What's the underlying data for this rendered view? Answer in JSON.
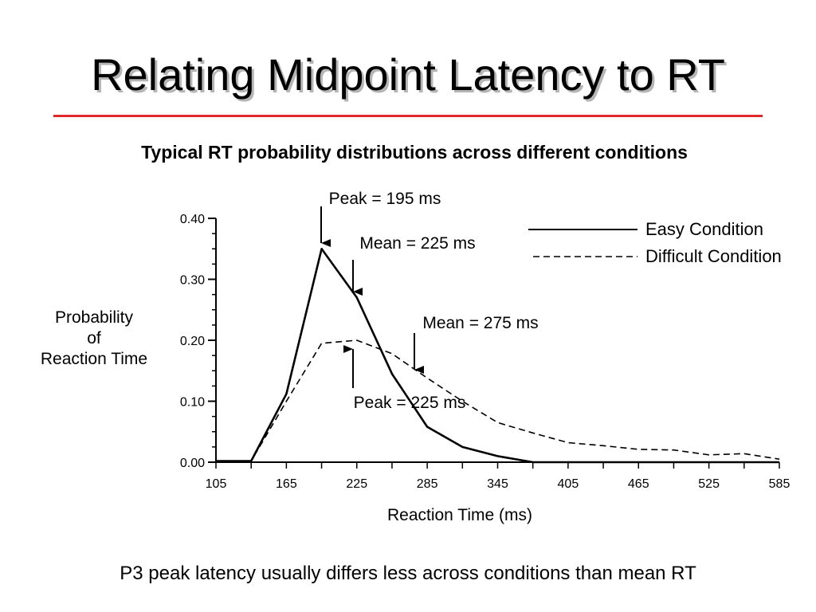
{
  "slide": {
    "title": "Relating Midpoint Latency to RT",
    "rule_color": "#e3282b",
    "footer": "P3 peak latency usually differs less across conditions than mean RT"
  },
  "chart_data": {
    "type": "line",
    "title": "Typical RT probability distributions across different conditions",
    "xlabel": "Reaction Time (ms)",
    "ylabel_lines": [
      "Probability",
      "of",
      "Reaction Time"
    ],
    "xlim": [
      105,
      585
    ],
    "ylim": [
      0,
      0.4
    ],
    "x_ticks": [
      "105",
      "165",
      "225",
      "285",
      "345",
      "405",
      "465",
      "525",
      "585"
    ],
    "y_ticks": [
      "0.00",
      "0.10",
      "0.20",
      "0.30",
      "0.40"
    ],
    "legend_position": "top-right",
    "series": [
      {
        "name": "Easy Condition",
        "style": "solid",
        "x": [
          105,
          135,
          165,
          195,
          225,
          255,
          285,
          315,
          345,
          375,
          405,
          435,
          465,
          495,
          525,
          555,
          585
        ],
        "y": [
          0.002,
          0.002,
          0.112,
          0.35,
          0.27,
          0.145,
          0.058,
          0.025,
          0.01,
          0.0,
          0.0,
          0.0,
          0.0,
          0.0,
          0.0,
          0.0,
          0.0
        ]
      },
      {
        "name": "Difficult Condition",
        "style": "dashed",
        "x": [
          105,
          135,
          165,
          195,
          225,
          255,
          285,
          315,
          345,
          375,
          405,
          435,
          465,
          495,
          525,
          555,
          585
        ],
        "y": [
          0.002,
          0.002,
          0.1,
          0.195,
          0.2,
          0.178,
          0.138,
          0.1,
          0.065,
          0.048,
          0.032,
          0.027,
          0.021,
          0.02,
          0.012,
          0.014,
          0.005
        ]
      }
    ],
    "annotations": [
      {
        "text": "Peak = 195 ms",
        "series": "Easy Condition"
      },
      {
        "text": "Mean = 225 ms",
        "series": "Easy Condition"
      },
      {
        "text": "Mean = 275 ms",
        "series": "Difficult Condition"
      },
      {
        "text": "Peak = 225 ms",
        "series": "Difficult Condition"
      }
    ]
  }
}
